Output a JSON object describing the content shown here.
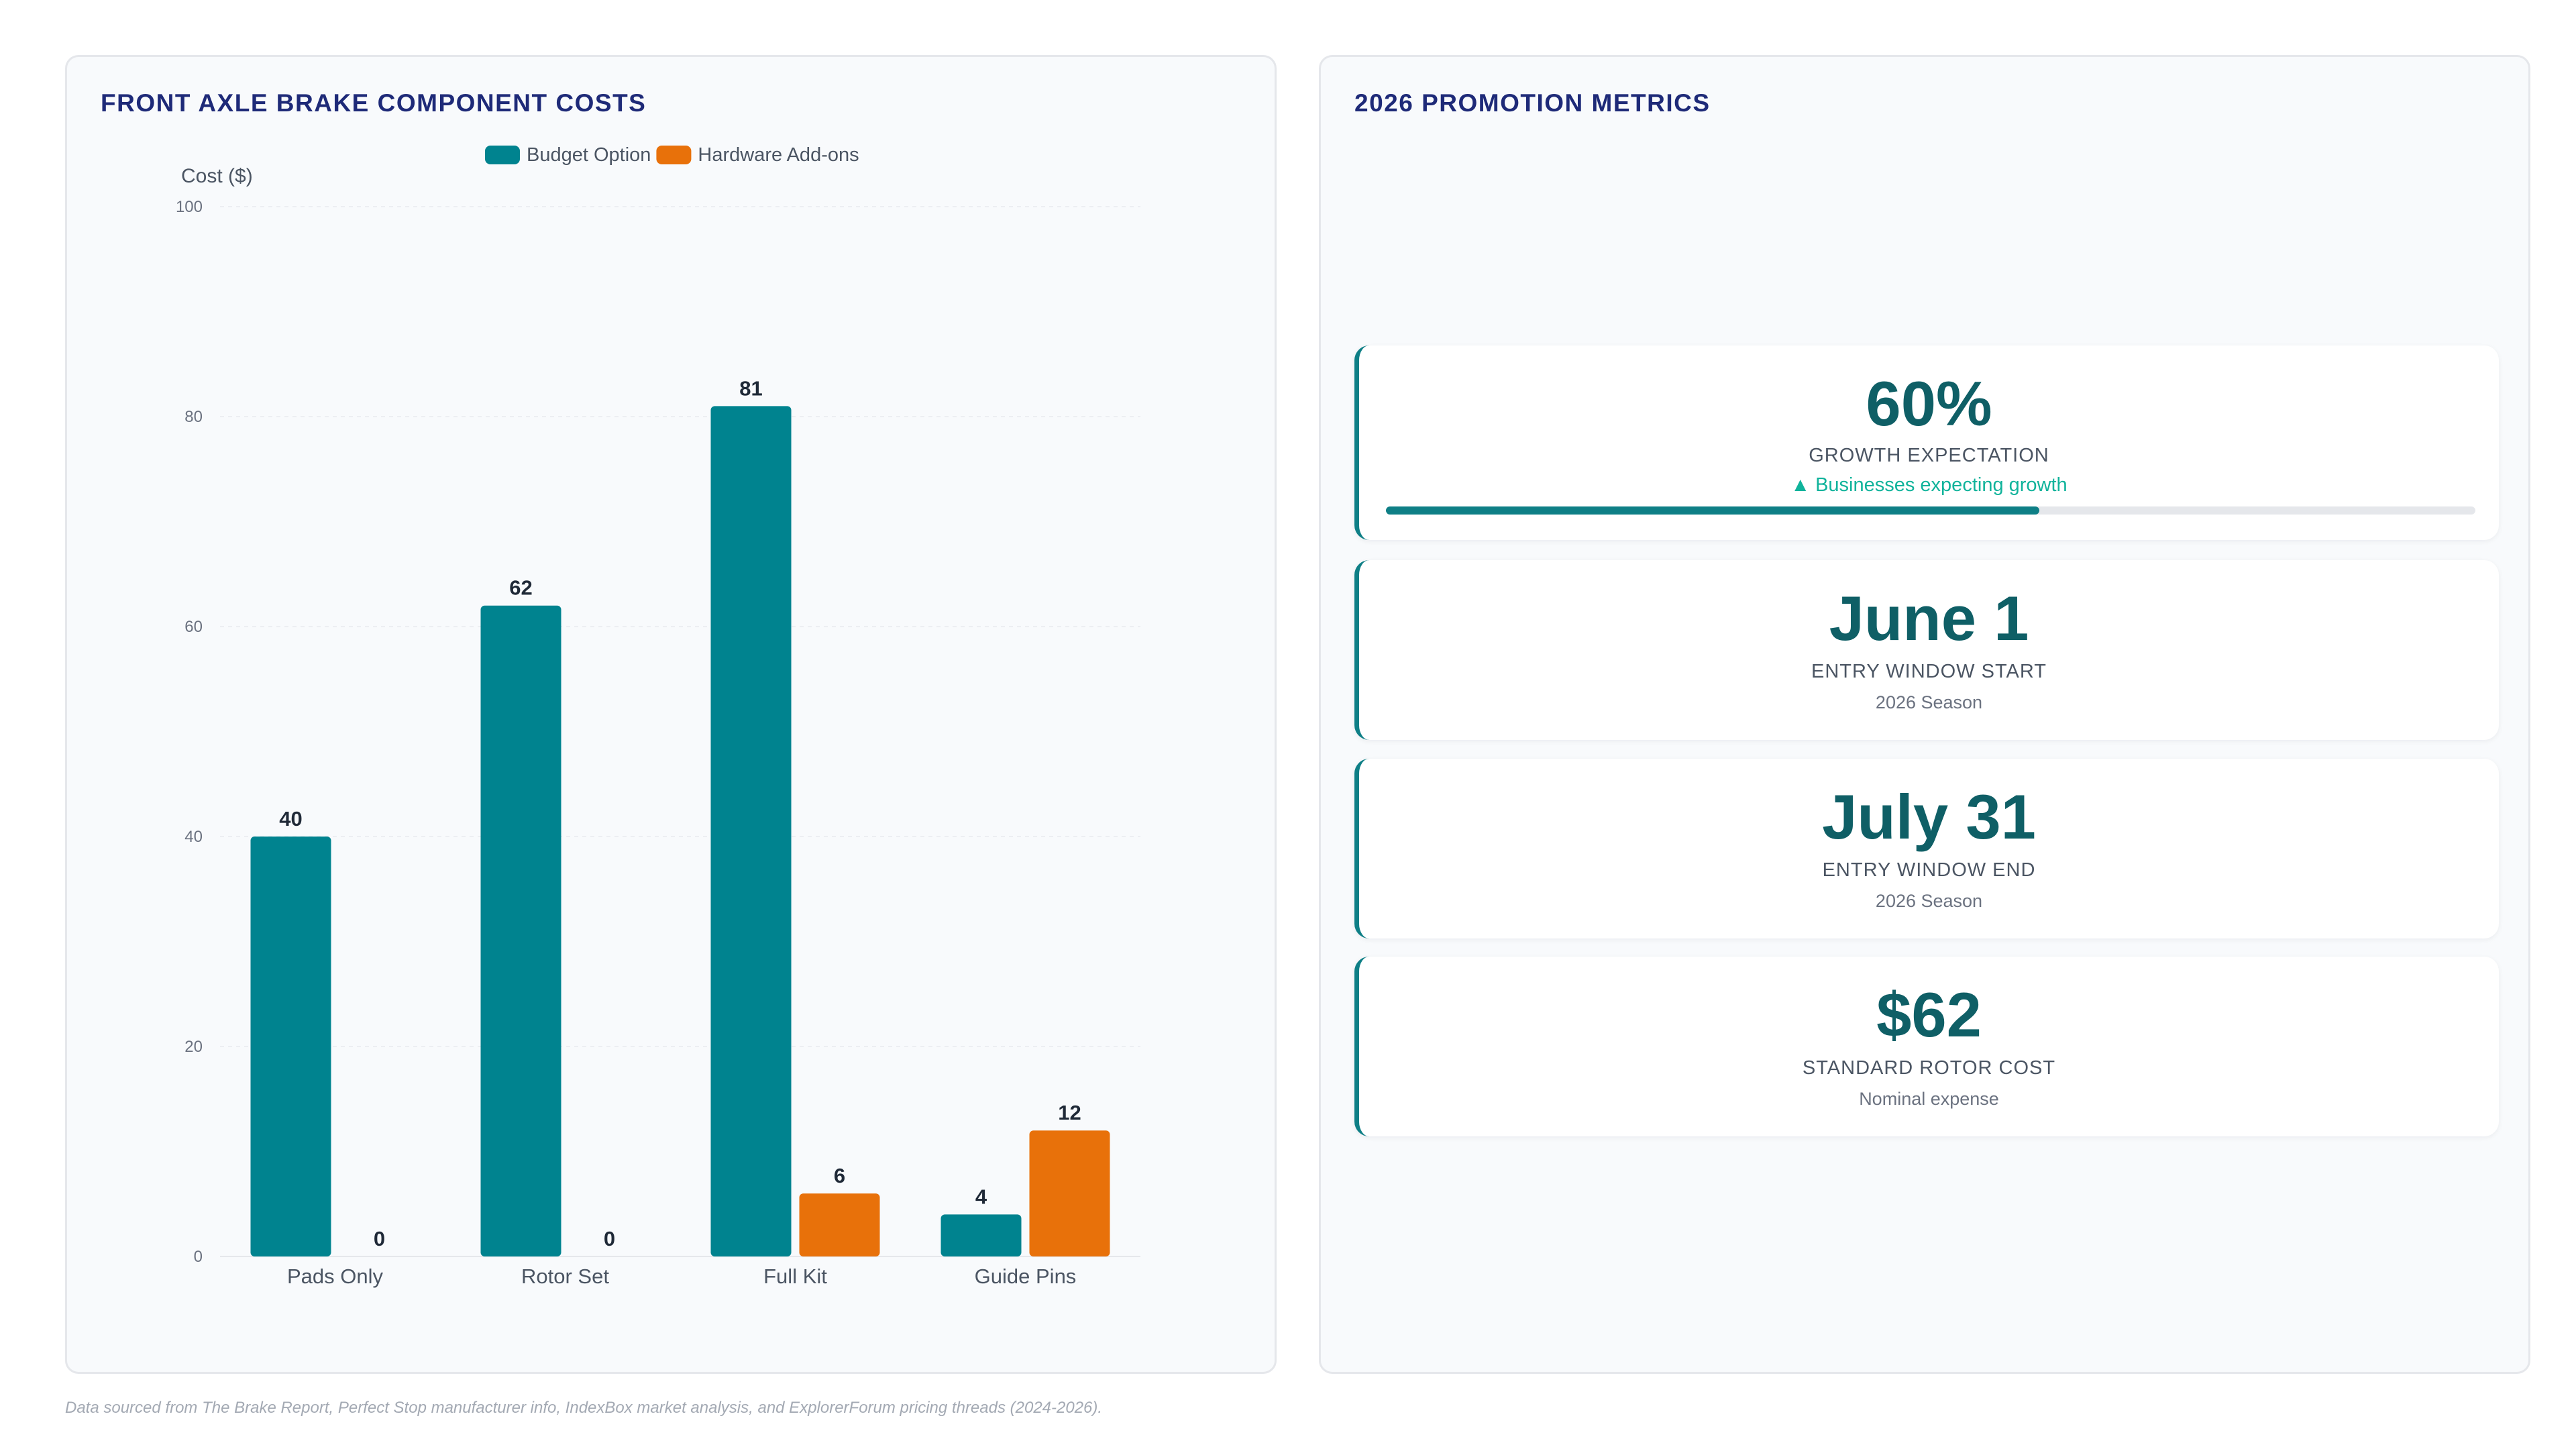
{
  "left_panel": {
    "title": "FRONT AXLE BRAKE COMPONENT COSTS"
  },
  "right_panel": {
    "title": "2026 PROMOTION METRICS"
  },
  "chart_data": {
    "type": "bar",
    "title": "FRONT AXLE BRAKE COMPONENT COSTS",
    "categories": [
      "Pads Only",
      "Rotor Set",
      "Full Kit",
      "Guide Pins"
    ],
    "series": [
      {
        "name": "Budget Option",
        "values": [
          40,
          62,
          81,
          4
        ],
        "color": "#00838f"
      },
      {
        "name": "Hardware Add-ons",
        "values": [
          0,
          0,
          6,
          12
        ],
        "color": "#e8710a"
      }
    ],
    "xlabel": "",
    "ylabel": "Cost ($)",
    "ylim": [
      0,
      100
    ],
    "yticks": [
      0,
      20,
      40,
      60,
      80,
      100
    ],
    "grid": true,
    "legend_position": "top-center",
    "data_labels": true
  },
  "metrics": [
    {
      "value": "60%",
      "label": "GROWTH EXPECTATION",
      "trend": "▲ Businesses expecting growth",
      "progress": 0.6
    },
    {
      "value": "June 1",
      "label": "ENTRY WINDOW START",
      "sub": "2026 Season"
    },
    {
      "value": "July 31",
      "label": "ENTRY WINDOW END",
      "sub": "2026 Season"
    },
    {
      "value": "$62",
      "label": "STANDARD ROTOR COST",
      "sub": "Nominal expense"
    }
  ],
  "footnote": "Data sourced from The Brake Report, Perfect Stop manufacturer info, IndexBox market analysis, and ExplorerForum pricing threads (2024-2026)."
}
